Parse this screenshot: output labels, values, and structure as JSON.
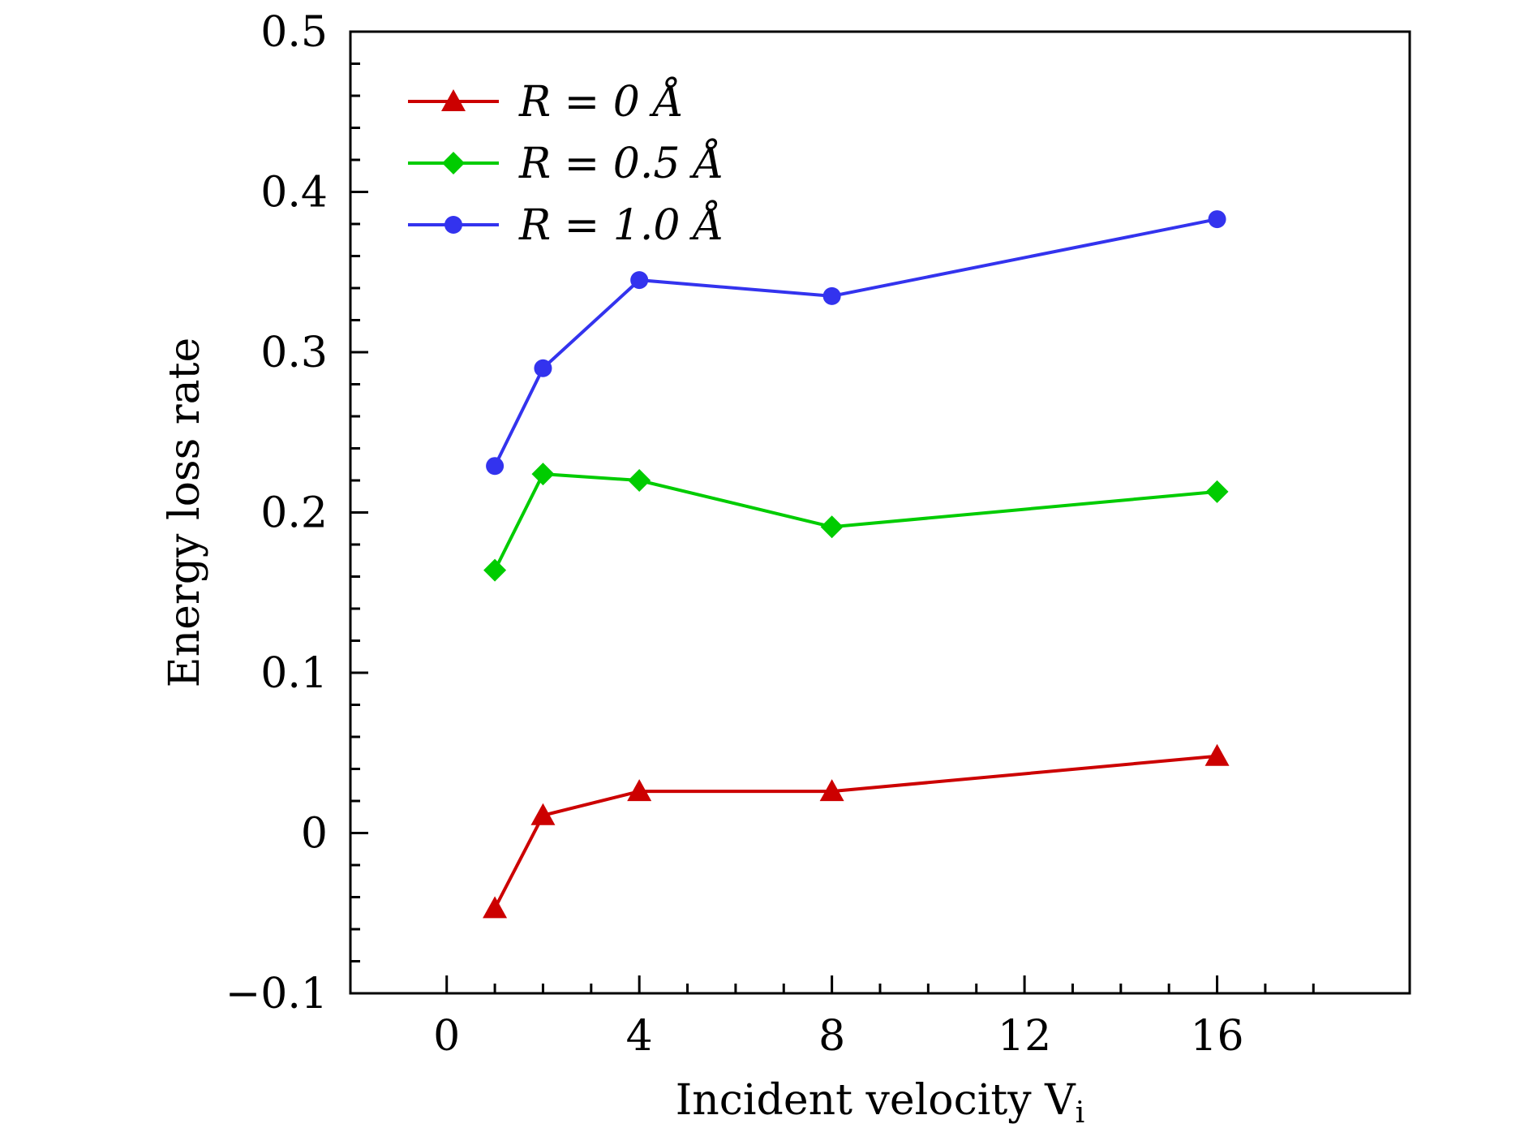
{
  "chart_data": {
    "type": "line",
    "xlabel": "Incident velocity V",
    "xlabel_subscript": "i",
    "ylabel": "Energy loss rate",
    "xlim": [
      -2,
      20
    ],
    "ylim": [
      -0.1,
      0.5
    ],
    "x_ticks": [
      "0",
      "4",
      "8",
      "12",
      "16"
    ],
    "y_ticks": [
      "−0.1",
      "0",
      "0.1",
      "0.2",
      "0.3",
      "0.4",
      "0.5"
    ],
    "grid": false,
    "legend_position": "top-left",
    "x": [
      1,
      2,
      4,
      8,
      16
    ],
    "series": [
      {
        "name": "R = 0 Å",
        "color": "#cc0000",
        "marker": "triangle",
        "values": [
          -0.047,
          0.011,
          0.026,
          0.026,
          0.048
        ]
      },
      {
        "name": "R = 0.5 Å",
        "color": "#00cc00",
        "marker": "diamond",
        "values": [
          0.164,
          0.224,
          0.22,
          0.191,
          0.213
        ]
      },
      {
        "name": "R = 1.0 Å",
        "color": "#3333ee",
        "marker": "circle",
        "values": [
          0.229,
          0.29,
          0.345,
          0.335,
          0.383
        ]
      }
    ]
  }
}
